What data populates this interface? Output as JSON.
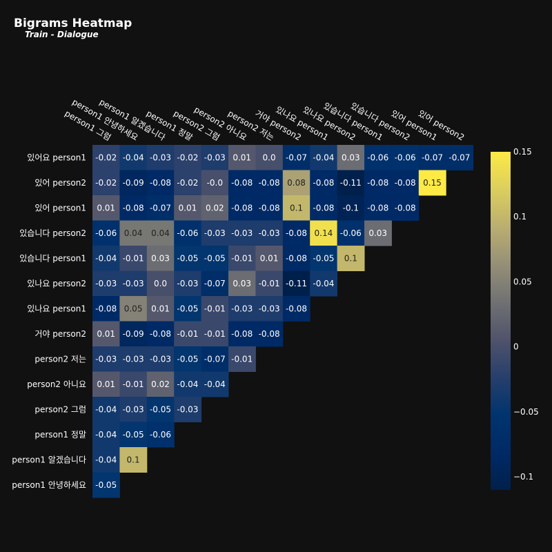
{
  "chart_data": {
    "type": "heatmap",
    "title": "Bigrams Heatmap",
    "subtitle": "Train - Dialogue",
    "x_categories": [
      "person1 그럼",
      "person1 안녕하세요",
      "person1 알겠습니다",
      "person1 정말",
      "person2 그럼",
      "person2 아니요",
      "person2 저는",
      "거야 person2",
      "있나요 person1",
      "있나요 person2",
      "있습니다 person1",
      "있습니다 person2",
      "있어 person1",
      "있어 person2"
    ],
    "y_categories": [
      "있어요 person1",
      "있어 person2",
      "있어 person1",
      "있습니다 person2",
      "있습니다 person1",
      "있나요 person2",
      "있나요 person1",
      "거야 person2",
      "person2 저는",
      "person2 아니요",
      "person2 그럼",
      "person1 정말",
      "person1 알겠습니다",
      "person1 안녕하세요"
    ],
    "values": [
      [
        -0.02,
        -0.04,
        -0.03,
        -0.02,
        -0.03,
        0.01,
        0.0,
        -0.07,
        -0.04,
        0.03,
        -0.06,
        -0.06,
        -0.07,
        -0.07
      ],
      [
        -0.02,
        -0.09,
        -0.08,
        -0.02,
        -0.0,
        -0.08,
        -0.08,
        0.08,
        -0.08,
        -0.11,
        -0.08,
        -0.08,
        0.15
      ],
      [
        0.01,
        -0.08,
        -0.07,
        0.01,
        0.02,
        -0.08,
        -0.08,
        0.1,
        -0.08,
        -0.1,
        -0.08,
        -0.08
      ],
      [
        -0.06,
        0.04,
        0.04,
        -0.06,
        -0.03,
        -0.03,
        -0.03,
        -0.08,
        0.14,
        -0.06,
        0.03
      ],
      [
        -0.04,
        -0.01,
        0.03,
        -0.05,
        -0.05,
        -0.01,
        0.01,
        -0.08,
        -0.05,
        0.1
      ],
      [
        -0.03,
        -0.03,
        0.0,
        -0.03,
        -0.07,
        0.03,
        -0.01,
        -0.11,
        -0.04
      ],
      [
        -0.08,
        0.05,
        0.01,
        -0.05,
        -0.01,
        -0.03,
        -0.03,
        -0.08
      ],
      [
        0.01,
        -0.09,
        -0.08,
        -0.01,
        -0.01,
        -0.08,
        -0.08
      ],
      [
        -0.03,
        -0.03,
        -0.03,
        -0.05,
        -0.07,
        -0.01
      ],
      [
        0.01,
        -0.01,
        0.02,
        -0.04,
        -0.04
      ],
      [
        -0.04,
        -0.03,
        -0.05,
        -0.03
      ],
      [
        -0.04,
        -0.05,
        -0.06
      ],
      [
        -0.04,
        0.1
      ],
      [
        -0.05
      ]
    ],
    "value_labels": [
      [
        "-0.02",
        "-0.04",
        "-0.03",
        "-0.02",
        "-0.03",
        "0.01",
        "0.0",
        "-0.07",
        "-0.04",
        "0.03",
        "-0.06",
        "-0.06",
        "-0.07",
        "-0.07"
      ],
      [
        "-0.02",
        "-0.09",
        "-0.08",
        "-0.02",
        "-0.0",
        "-0.08",
        "-0.08",
        "0.08",
        "-0.08",
        "-0.11",
        "-0.08",
        "-0.08",
        "0.15"
      ],
      [
        "0.01",
        "-0.08",
        "-0.07",
        "0.01",
        "0.02",
        "-0.08",
        "-0.08",
        "0.1",
        "-0.08",
        "-0.1",
        "-0.08",
        "-0.08"
      ],
      [
        "-0.06",
        "0.04",
        "0.04",
        "-0.06",
        "-0.03",
        "-0.03",
        "-0.03",
        "-0.08",
        "0.14",
        "-0.06",
        "0.03"
      ],
      [
        "-0.04",
        "-0.01",
        "0.03",
        "-0.05",
        "-0.05",
        "-0.01",
        "0.01",
        "-0.08",
        "-0.05",
        "0.1"
      ],
      [
        "-0.03",
        "-0.03",
        "0.0",
        "-0.03",
        "-0.07",
        "0.03",
        "-0.01",
        "-0.11",
        "-0.04"
      ],
      [
        "-0.08",
        "0.05",
        "0.01",
        "-0.05",
        "-0.01",
        "-0.03",
        "-0.03",
        "-0.08"
      ],
      [
        "0.01",
        "-0.09",
        "-0.08",
        "-0.01",
        "-0.01",
        "-0.08",
        "-0.08"
      ],
      [
        "-0.03",
        "-0.03",
        "-0.03",
        "-0.05",
        "-0.07",
        "-0.01"
      ],
      [
        "0.01",
        "-0.01",
        "0.02",
        "-0.04",
        "-0.04"
      ],
      [
        "-0.04",
        "-0.03",
        "-0.05",
        "-0.03"
      ],
      [
        "-0.04",
        "-0.05",
        "-0.06"
      ],
      [
        "-0.04",
        "0.1"
      ],
      [
        "-0.05"
      ]
    ],
    "zmin": -0.11,
    "zmax": 0.15,
    "colorscale": "cividis",
    "colorbar_ticks": [
      0.15,
      0.1,
      0.05,
      0,
      -0.05,
      -0.1
    ],
    "colorbar_tick_labels": [
      "0.15",
      "0.1",
      "0.05",
      "0",
      "−0.05",
      "−0.1"
    ],
    "legend": "colorbar right"
  }
}
